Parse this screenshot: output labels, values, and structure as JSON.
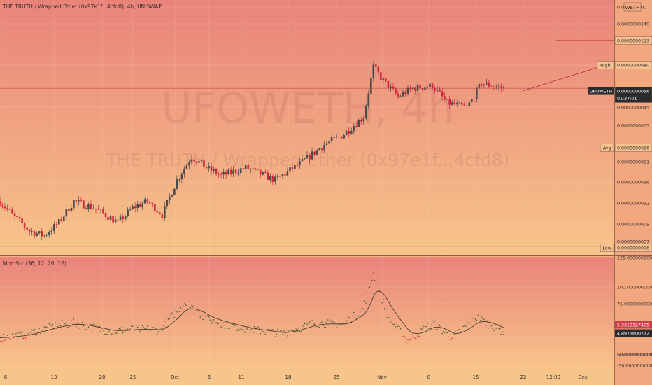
{
  "header": {
    "symbol_title": "THE TRUTH / Wrapped Ether (0x97e1f...4cfd8), 4h, UNISWAP",
    "currency_badge": "WETH"
  },
  "watermark": {
    "symbol": "UFOWETH, 4h",
    "description": "THE TRUTH / Wrapped Ether (0x97e1f...4cfd8)"
  },
  "colors": {
    "bg_top": "#e9837a",
    "bg_bottom": "#f7c489",
    "candle_up": "#4b4b4b",
    "candle_down": "#d1273e",
    "price_line": "#b22a3b",
    "label_dark": "#2c2c2c",
    "label_red": "#d33c48"
  },
  "price_axis": {
    "ticks": [
      {
        "label": "0.000000000"
      },
      {
        "label": "0.0000000140"
      },
      {
        "label": "0.0000000080"
      },
      {
        "label": "0.0000000045"
      },
      {
        "label": "0.0000000035"
      },
      {
        "label": "0.0000000021"
      },
      {
        "label": "0.0000000016"
      },
      {
        "label": "0.0000000012"
      },
      {
        "label": "0.0000000009"
      },
      {
        "label": "0.0000000007"
      }
    ],
    "markers": [
      {
        "tag": "",
        "label": "0.0000000113"
      },
      {
        "tag": "High",
        "label": "0.0000000080"
      },
      {
        "tag": "UFOWETH",
        "label": "0.0000000056",
        "sub": "01:37:01"
      },
      {
        "tag": "Avg",
        "label": "0.0000000026"
      },
      {
        "tag": "Low",
        "label": "0.0000000006"
      }
    ]
  },
  "indicator": {
    "title": "MomStc (36, 12, 26, 12)",
    "ticks": [
      {
        "label": "125.0000000000"
      },
      {
        "label": "100.0000000000"
      },
      {
        "label": "75.0000000000"
      },
      {
        "label": "50.0000000000"
      },
      {
        "label": "-25.0000000000"
      },
      {
        "label": "-50.0000000000"
      }
    ],
    "value_labels": [
      {
        "label": "5.3319327405"
      },
      {
        "label": "4.8971600772"
      }
    ]
  },
  "time_axis": {
    "labels": [
      "6",
      "13",
      "20",
      "25",
      "Oct",
      "6",
      "11",
      "18",
      "25",
      "Nov",
      "8",
      "15",
      "22",
      "12:00",
      "Dec"
    ]
  },
  "chart_data": {
    "type": "candlestick",
    "price_scale": "log",
    "price_ylim": [
      6e-10,
      1.8e-08
    ],
    "price_markers": {
      "high": 8e-09,
      "last": 5.6e-09,
      "avg": 2.6e-09,
      "low": 6e-10,
      "level": 1.13e-08
    },
    "price_path": [
      {
        "t": 0,
        "p": 1.2e-09
      },
      {
        "t": 5,
        "p": 1e-09
      },
      {
        "t": 12,
        "p": 8e-10
      },
      {
        "t": 18,
        "p": 7.5e-10
      },
      {
        "t": 24,
        "p": 9e-10
      },
      {
        "t": 30,
        "p": 1.2e-09
      },
      {
        "t": 38,
        "p": 1.1e-09
      },
      {
        "t": 48,
        "p": 9e-10
      },
      {
        "t": 54,
        "p": 1.1e-09
      },
      {
        "t": 60,
        "p": 1.2e-09
      },
      {
        "t": 66,
        "p": 1e-09
      },
      {
        "t": 72,
        "p": 1.6e-09
      },
      {
        "t": 78,
        "p": 2.2e-09
      },
      {
        "t": 84,
        "p": 1.9e-09
      },
      {
        "t": 90,
        "p": 1.7e-09
      },
      {
        "t": 100,
        "p": 1.9e-09
      },
      {
        "t": 112,
        "p": 1.6e-09
      },
      {
        "t": 122,
        "p": 2e-09
      },
      {
        "t": 132,
        "p": 2.6e-09
      },
      {
        "t": 140,
        "p": 3e-09
      },
      {
        "t": 148,
        "p": 3.8e-09
      },
      {
        "t": 152,
        "p": 7.5e-09
      },
      {
        "t": 156,
        "p": 6.2e-09
      },
      {
        "t": 162,
        "p": 5e-09
      },
      {
        "t": 168,
        "p": 5.6e-09
      },
      {
        "t": 176,
        "p": 5.8e-09
      },
      {
        "t": 182,
        "p": 4.6e-09
      },
      {
        "t": 190,
        "p": 4.3e-09
      },
      {
        "t": 196,
        "p": 6e-09
      },
      {
        "t": 205,
        "p": 5.6e-09
      }
    ],
    "momentum_ylim": [
      -55,
      130
    ],
    "momentum_path": [
      {
        "t": 0,
        "v": -5
      },
      {
        "t": 10,
        "v": 0
      },
      {
        "t": 22,
        "v": 15
      },
      {
        "t": 30,
        "v": 20
      },
      {
        "t": 45,
        "v": 5
      },
      {
        "t": 55,
        "v": 10
      },
      {
        "t": 65,
        "v": 8
      },
      {
        "t": 75,
        "v": 55
      },
      {
        "t": 85,
        "v": 25
      },
      {
        "t": 100,
        "v": 10
      },
      {
        "t": 115,
        "v": 2
      },
      {
        "t": 128,
        "v": 20
      },
      {
        "t": 140,
        "v": 18
      },
      {
        "t": 148,
        "v": 45
      },
      {
        "t": 152,
        "v": 105
      },
      {
        "t": 158,
        "v": 30
      },
      {
        "t": 166,
        "v": -10
      },
      {
        "t": 176,
        "v": 20
      },
      {
        "t": 184,
        "v": -5
      },
      {
        "t": 194,
        "v": 30
      },
      {
        "t": 205,
        "v": 5
      }
    ]
  }
}
